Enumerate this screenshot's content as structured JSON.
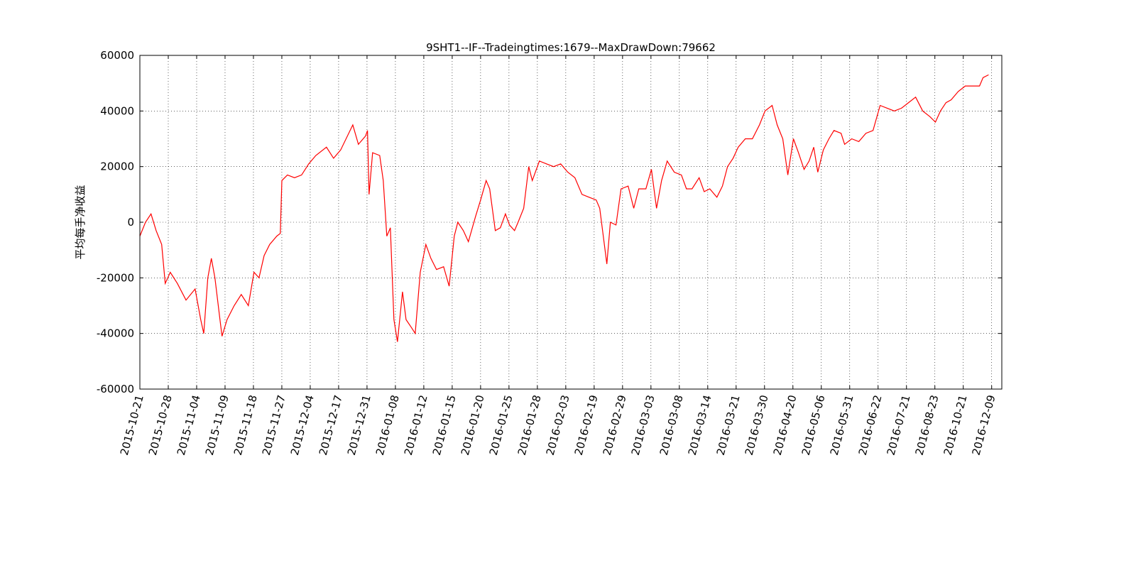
{
  "chart_data": {
    "type": "line",
    "title": "9SHT1--IF--Tradeingtimes:1679--MaxDrawDown:79662",
    "y_label": "平均每手净收益",
    "color": "#ff0000",
    "grid": true,
    "xlim": [
      0,
      1700
    ],
    "ylim": [
      -60000,
      60000
    ],
    "yticks": [
      -60000,
      -40000,
      -20000,
      0,
      20000,
      40000,
      60000
    ],
    "xticks": [
      {
        "value": 0,
        "label": "2015-10-21"
      },
      {
        "value": 56,
        "label": "2015-10-28"
      },
      {
        "value": 112,
        "label": "2015-11-04"
      },
      {
        "value": 168,
        "label": "2015-11-09"
      },
      {
        "value": 224,
        "label": "2015-11-18"
      },
      {
        "value": 280,
        "label": "2015-11-27"
      },
      {
        "value": 336,
        "label": "2015-12-04"
      },
      {
        "value": 392,
        "label": "2015-12-17"
      },
      {
        "value": 448,
        "label": "2015-12-31"
      },
      {
        "value": 504,
        "label": "2016-01-08"
      },
      {
        "value": 560,
        "label": "2016-01-12"
      },
      {
        "value": 616,
        "label": "2016-01-15"
      },
      {
        "value": 672,
        "label": "2016-01-20"
      },
      {
        "value": 728,
        "label": "2016-01-25"
      },
      {
        "value": 784,
        "label": "2016-01-28"
      },
      {
        "value": 840,
        "label": "2016-02-03"
      },
      {
        "value": 896,
        "label": "2016-02-19"
      },
      {
        "value": 952,
        "label": "2016-02-29"
      },
      {
        "value": 1008,
        "label": "2016-03-03"
      },
      {
        "value": 1064,
        "label": "2016-03-08"
      },
      {
        "value": 1120,
        "label": "2016-03-14"
      },
      {
        "value": 1176,
        "label": "2016-03-21"
      },
      {
        "value": 1232,
        "label": "2016-03-30"
      },
      {
        "value": 1288,
        "label": "2016-04-20"
      },
      {
        "value": 1344,
        "label": "2016-05-06"
      },
      {
        "value": 1400,
        "label": "2016-05-31"
      },
      {
        "value": 1456,
        "label": "2016-06-22"
      },
      {
        "value": 1512,
        "label": "2016-07-21"
      },
      {
        "value": 1568,
        "label": "2016-08-23"
      },
      {
        "value": 1624,
        "label": "2016-10-21"
      },
      {
        "value": 1680,
        "label": "2016-12-09"
      }
    ],
    "x": [
      0,
      11,
      22,
      32,
      43,
      50,
      60,
      74,
      91,
      109,
      120,
      126,
      134,
      141,
      148,
      158,
      162,
      172,
      186,
      200,
      214,
      225,
      235,
      245,
      256,
      270,
      277,
      280,
      291,
      305,
      319,
      333,
      347,
      368,
      382,
      396,
      420,
      431,
      445,
      449,
      452,
      459,
      473,
      480,
      487,
      494,
      501,
      508,
      518,
      525,
      536,
      543,
      553,
      564,
      574,
      585,
      599,
      610,
      620,
      627,
      638,
      648,
      662,
      672,
      683,
      690,
      701,
      711,
      721,
      729,
      739,
      746,
      757,
      767,
      774,
      788,
      802,
      816,
      830,
      844,
      858,
      872,
      886,
      900,
      907,
      914,
      921,
      928,
      939,
      949,
      963,
      974,
      984,
      998,
      1009,
      1019,
      1029,
      1040,
      1054,
      1068,
      1078,
      1089,
      1103,
      1113,
      1124,
      1138,
      1149,
      1159,
      1170,
      1180,
      1194,
      1208,
      1222,
      1233,
      1247,
      1257,
      1268,
      1278,
      1289,
      1299,
      1310,
      1320,
      1329,
      1337,
      1348,
      1359,
      1369,
      1383,
      1390,
      1404,
      1418,
      1432,
      1446,
      1460,
      1474,
      1488,
      1502,
      1516,
      1530,
      1544,
      1558,
      1569,
      1579,
      1590,
      1600,
      1614,
      1628,
      1642,
      1656,
      1663,
      1674
    ],
    "values": [
      -5000,
      0,
      3000,
      -3000,
      -8000,
      -22000,
      -18000,
      -22000,
      -28000,
      -24000,
      -35000,
      -40000,
      -20000,
      -13000,
      -20000,
      -35000,
      -41000,
      -35000,
      -30000,
      -26000,
      -30000,
      -18000,
      -20000,
      -12000,
      -8000,
      -5000,
      -4000,
      15000,
      17000,
      16000,
      17000,
      21000,
      24000,
      27000,
      23000,
      26000,
      35000,
      28000,
      31000,
      33000,
      10000,
      25000,
      24000,
      15000,
      -5000,
      -2000,
      -35000,
      -43000,
      -25000,
      -35000,
      -38000,
      -40000,
      -18000,
      -8000,
      -13000,
      -17000,
      -16000,
      -23000,
      -5000,
      0,
      -3000,
      -7000,
      2000,
      8000,
      15000,
      12000,
      -3000,
      -2000,
      3000,
      -1000,
      -3000,
      0,
      5000,
      20000,
      15000,
      22000,
      21000,
      20000,
      21000,
      18000,
      16000,
      10000,
      9000,
      8000,
      5000,
      -5000,
      -15000,
      0,
      -1000,
      12000,
      13000,
      5000,
      12000,
      12000,
      19000,
      5000,
      15000,
      22000,
      18000,
      17000,
      12000,
      12000,
      16000,
      11000,
      12000,
      9000,
      13000,
      20000,
      23000,
      27000,
      30000,
      30000,
      35000,
      40000,
      42000,
      35000,
      30000,
      17000,
      30000,
      25000,
      19000,
      22000,
      27000,
      18000,
      26000,
      30000,
      33000,
      32000,
      28000,
      30000,
      29000,
      32000,
      33000,
      42000,
      41000,
      40000,
      41000,
      43000,
      45000,
      40000,
      38000,
      36000,
      40000,
      43000,
      44000,
      47000,
      49000,
      49000,
      49000,
      52000,
      53000
    ]
  }
}
